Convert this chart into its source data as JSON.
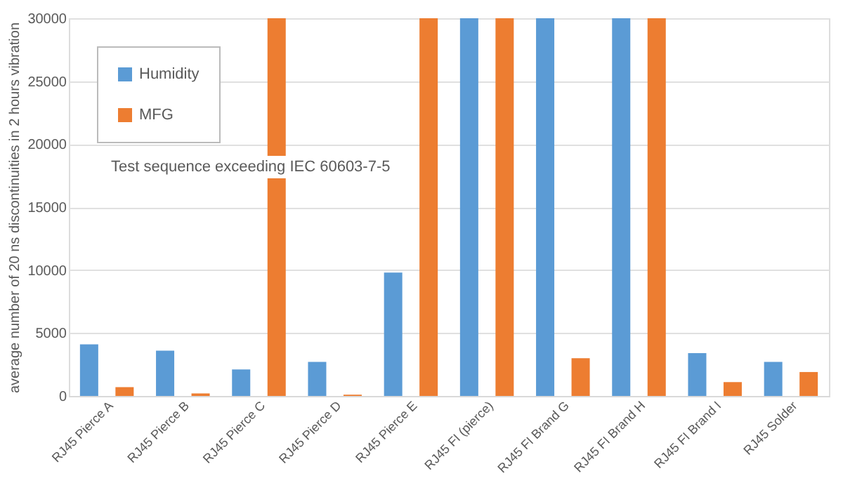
{
  "chart_data": {
    "type": "bar",
    "ylabel": "average number of 20 ns discontinuities in 2 hours vibration",
    "categories": [
      "RJ45 Pierce A",
      "RJ45 Pierce B",
      "RJ45 Pierce C",
      "RJ45 Pierce D",
      "RJ45 Pierce E",
      "RJ45 FI (pierce)",
      "RJ45 FI Brand G",
      "RJ45 FI Brand H",
      "RJ45 FI Brand I",
      "RJ45 Solder"
    ],
    "series": [
      {
        "name": "Humidity",
        "color": "#5b9bd5",
        "values": [
          4100,
          3600,
          2100,
          2700,
          9800,
          30000,
          30000,
          30000,
          3400,
          2700
        ]
      },
      {
        "name": "MFG",
        "color": "#ed7d31",
        "values": [
          700,
          200,
          30000,
          100,
          30000,
          30000,
          3000,
          30000,
          1100,
          1900
        ]
      }
    ],
    "ylim": [
      0,
      30000
    ],
    "yticks": [
      0,
      5000,
      10000,
      15000,
      20000,
      25000,
      30000
    ],
    "grid": "y",
    "legend": "top left",
    "annotations": [
      "Test sequence exceeding IEC 60603-7-5"
    ]
  }
}
